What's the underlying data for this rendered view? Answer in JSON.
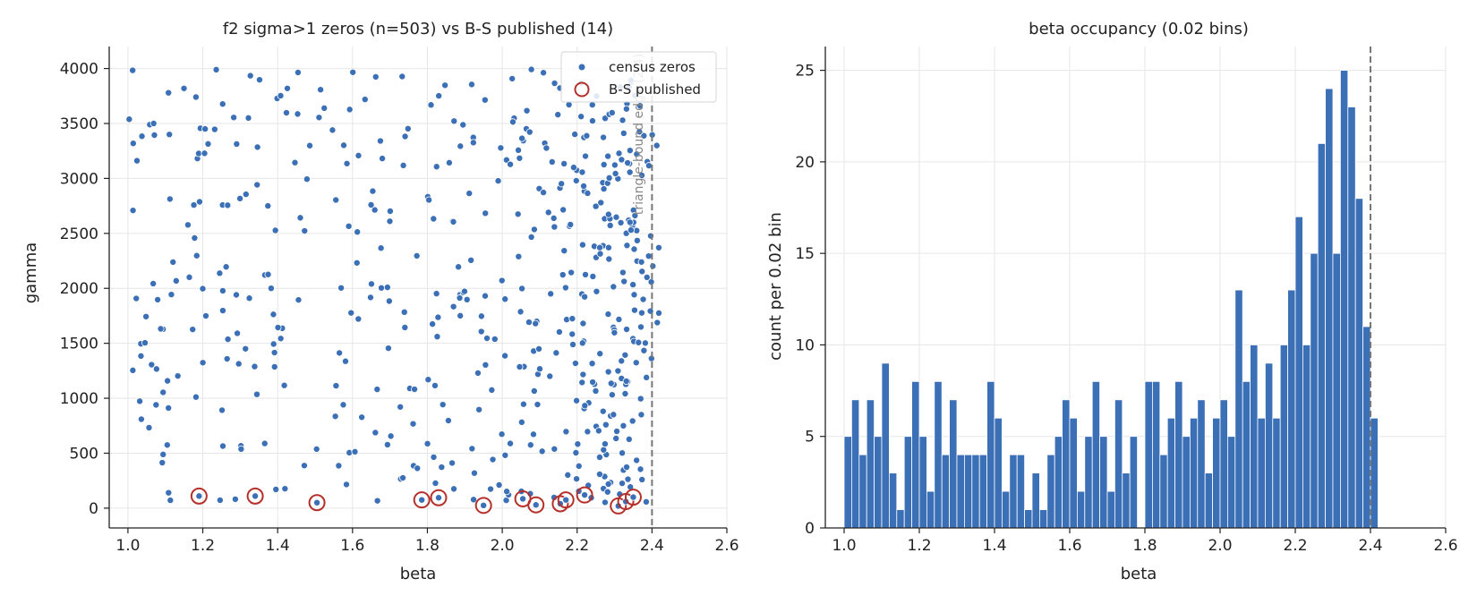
{
  "chart_data": [
    {
      "type": "scatter",
      "title": "f2 sigma>1 zeros (n=503) vs B-S published (14)",
      "xlabel": "beta",
      "ylabel": "gamma",
      "xlim": [
        0.95,
        2.6
      ],
      "ylim": [
        -180,
        4200
      ],
      "xticks": [
        "1.0",
        "1.2",
        "1.4",
        "1.6",
        "1.8",
        "2.0",
        "2.2",
        "2.4",
        "2.6"
      ],
      "yticks": [
        "0",
        "500",
        "1000",
        "1500",
        "2000",
        "2500",
        "3000",
        "3500",
        "4000"
      ],
      "grid": true,
      "legend_position": "top-right",
      "vline": {
        "x": 2.4,
        "label": "triangle-bound edge (2.4)"
      },
      "series": [
        {
          "name": "census zeros",
          "color": "#3b6fb6",
          "marker": "dot",
          "count": 503
        },
        {
          "name": "B-S published",
          "color": "#b5302a",
          "marker": "ring",
          "points": [
            [
              1.19,
              110
            ],
            [
              1.34,
              110
            ],
            [
              1.505,
              50
            ],
            [
              1.785,
              75
            ],
            [
              1.83,
              95
            ],
            [
              1.95,
              25
            ],
            [
              2.055,
              85
            ],
            [
              2.09,
              30
            ],
            [
              2.155,
              40
            ],
            [
              2.17,
              75
            ],
            [
              2.22,
              120
            ],
            [
              2.31,
              20
            ],
            [
              2.33,
              60
            ],
            [
              2.35,
              100
            ]
          ]
        }
      ]
    },
    {
      "type": "bar",
      "title": "beta occupancy (0.02 bins)",
      "xlabel": "beta",
      "ylabel": "count per 0.02 bin",
      "xlim": [
        0.95,
        2.6
      ],
      "ylim": [
        0,
        26.3
      ],
      "xticks": [
        "1.0",
        "1.2",
        "1.4",
        "1.6",
        "1.8",
        "2.0",
        "2.2",
        "2.4",
        "2.6"
      ],
      "yticks": [
        "0",
        "5",
        "10",
        "15",
        "20",
        "25"
      ],
      "grid": true,
      "vline": {
        "x": 2.4
      },
      "bin_width": 0.02,
      "bin_start": 1.0,
      "values": [
        5,
        7,
        4,
        7,
        5,
        9,
        3,
        1,
        5,
        8,
        5,
        2,
        8,
        4,
        7,
        4,
        4,
        4,
        4,
        8,
        6,
        2,
        4,
        4,
        1,
        3,
        1,
        4,
        5,
        7,
        6,
        2,
        5,
        8,
        5,
        2,
        7,
        3,
        5,
        0,
        8,
        8,
        4,
        6,
        8,
        5,
        6,
        7,
        3,
        6,
        7,
        5,
        13,
        8,
        10,
        6,
        9,
        6,
        10,
        13,
        17,
        10,
        15,
        21,
        24,
        15,
        25,
        23,
        18,
        11,
        6
      ],
      "color": "#3b6fb6"
    }
  ]
}
